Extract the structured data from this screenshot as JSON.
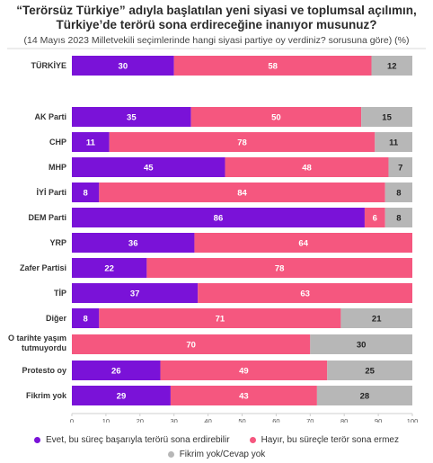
{
  "header": {
    "title_line1": "“Terörsüz Türkiye” adıyla başlatılan yeni siyasi ve toplumsal açılımın,",
    "title_line2": "Türkiye’de terörü sona erdireceğine inanıyor musunuz?",
    "subtitle": "(14 Mayıs 2023 Milletvekili seçimlerinde hangi siyasi partiye oy verdiniz? sorusuna göre) (%)"
  },
  "colors": {
    "yes": "#7a12d8",
    "no": "#f5577f",
    "dk": "#b7b7b7"
  },
  "chart_data": {
    "type": "bar",
    "orientation": "horizontal",
    "stacked": true,
    "title": "“Terörsüz Türkiye” adıyla başlatılan yeni siyasi ve toplumsal açılımın, Türkiye’de terörü sona erdireceğine inanıyor musunuz?",
    "subtitle": "(14 Mayıs 2023 Milletvekili seçimlerinde hangi siyasi partiye oy verdiniz? sorusuna göre) (%)",
    "categories": [
      "TÜRKİYE",
      "AK Parti",
      "CHP",
      "MHP",
      "İYİ Parti",
      "DEM Parti",
      "YRP",
      "Zafer Partisi",
      "TİP",
      "Diğer",
      "O tarihte yaşım tutmuyordu",
      "Protesto oy",
      "Fikrim yok"
    ],
    "category_lines": [
      [
        "TÜRKİYE"
      ],
      [
        "AK Parti"
      ],
      [
        "CHP"
      ],
      [
        "MHP"
      ],
      [
        "İYİ Parti"
      ],
      [
        "DEM Parti"
      ],
      [
        "YRP"
      ],
      [
        "Zafer Partisi"
      ],
      [
        "TİP"
      ],
      [
        "Diğer"
      ],
      [
        "O tarihte yaşım",
        "tutmuyordu"
      ],
      [
        "Protesto oy"
      ],
      [
        "Fikrim yok"
      ]
    ],
    "series": [
      {
        "name": "Evet, bu süreç başarıyla terörü sona erdirebilir",
        "color": "#7a12d8",
        "values": [
          30,
          35,
          11,
          45,
          8,
          86,
          36,
          22,
          37,
          8,
          0,
          26,
          29
        ]
      },
      {
        "name": "Hayır, bu süreçle terör sona ermez",
        "color": "#f5577f",
        "values": [
          58,
          50,
          78,
          48,
          84,
          6,
          64,
          78,
          63,
          71,
          70,
          49,
          43
        ]
      },
      {
        "name": "Fikrim yok/Cevap yok",
        "color": "#b7b7b7",
        "values": [
          12,
          15,
          11,
          7,
          8,
          8,
          0,
          0,
          0,
          21,
          30,
          25,
          28
        ]
      }
    ],
    "xlim": [
      0,
      100
    ],
    "xticks": [
      0,
      10,
      20,
      30,
      40,
      50,
      60,
      70,
      80,
      90,
      100
    ],
    "grid": false,
    "legend_position": "bottom"
  }
}
